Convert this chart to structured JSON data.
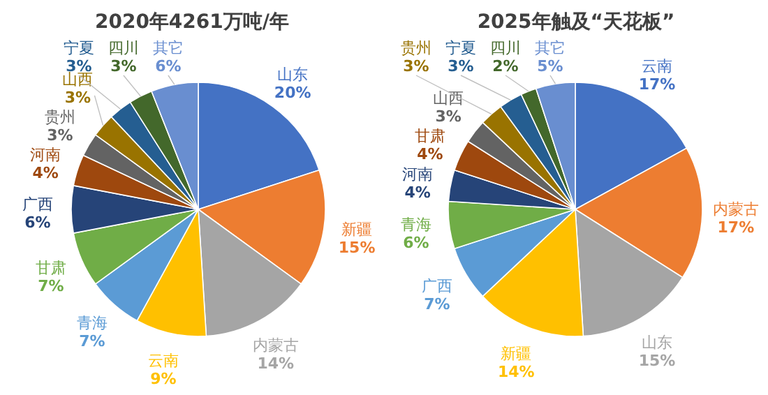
{
  "chart_data": [
    {
      "type": "pie",
      "title": "2020年4261万吨/年",
      "categories": [
        "山东",
        "新疆",
        "内蒙古",
        "云南",
        "青海",
        "甘肃",
        "广西",
        "河南",
        "贵州",
        "山西",
        "宁夏",
        "四川",
        "其它"
      ],
      "values": [
        20,
        15,
        14,
        9,
        7,
        7,
        6,
        4,
        3,
        3,
        3,
        3,
        6
      ],
      "value_labels": [
        "20%",
        "15%",
        "14%",
        "9%",
        "7%",
        "7%",
        "6%",
        "4%",
        "3%",
        "3%",
        "3%",
        "3%",
        "6%"
      ],
      "colors": [
        "#4472c4",
        "#ed7d31",
        "#a5a5a5",
        "#ffc000",
        "#5b9bd5",
        "#70ad47",
        "#264478",
        "#9e480e",
        "#636363",
        "#997300",
        "#255e91",
        "#43682b",
        "#698ed0"
      ]
    },
    {
      "type": "pie",
      "title": "2025年触及“天花板”",
      "categories": [
        "云南",
        "内蒙古",
        "山东",
        "新疆",
        "广西",
        "青海",
        "河南",
        "甘肃",
        "山西",
        "贵州",
        "宁夏",
        "四川",
        "其它"
      ],
      "values": [
        17,
        17,
        15,
        14,
        7,
        6,
        4,
        4,
        3,
        3,
        3,
        2,
        5
      ],
      "value_labels": [
        "17%",
        "17%",
        "15%",
        "14%",
        "7%",
        "6%",
        "4%",
        "4%",
        "3%",
        "3%",
        "3%",
        "2%",
        "5%"
      ],
      "colors": [
        "#4472c4",
        "#ed7d31",
        "#a5a5a5",
        "#ffc000",
        "#5b9bd5",
        "#70ad47",
        "#264478",
        "#9e480e",
        "#636363",
        "#997300",
        "#255e91",
        "#43682b",
        "#698ed0"
      ]
    }
  ]
}
